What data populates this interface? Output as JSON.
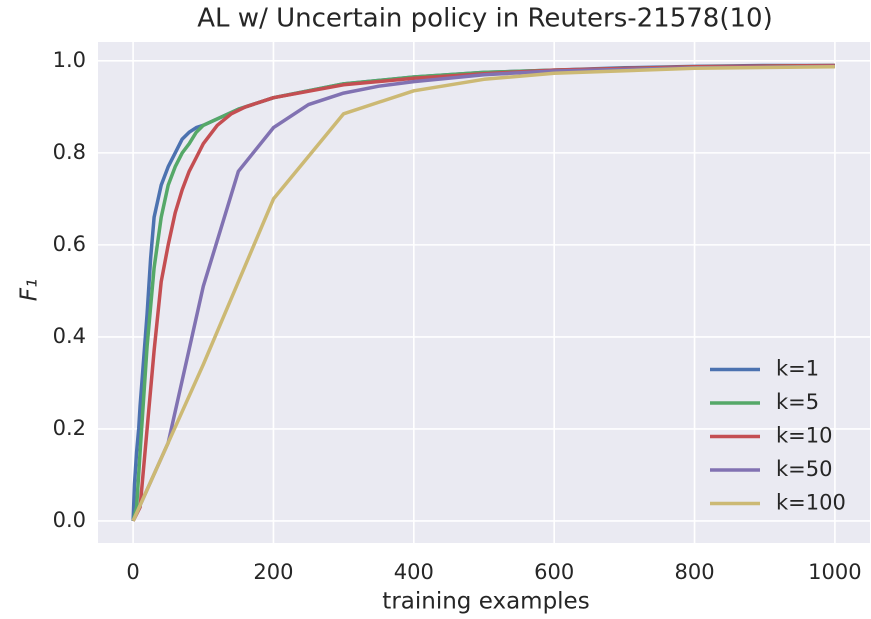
{
  "chart_data": {
    "type": "line",
    "title": "AL w/ Uncertain policy in Reuters-21578(10)",
    "xlabel": "training examples",
    "ylabel": "F₁",
    "xlim": [
      -50,
      1050
    ],
    "ylim": [
      -0.048,
      1.041
    ],
    "xticks": [
      0,
      200,
      400,
      600,
      800,
      1000
    ],
    "yticks": [
      {
        "value": 0.0,
        "label": "0.0"
      },
      0.2,
      0.4,
      0.6,
      0.8,
      {
        "value": 1.0,
        "label": "1.0"
      }
    ],
    "grid": true,
    "legend": "lower right",
    "series": [
      {
        "name": "k=1",
        "color": "#4c72b0",
        "x": [
          0,
          2,
          5,
          8,
          10,
          15,
          20,
          25,
          30,
          40,
          50,
          60,
          70,
          80,
          90,
          100,
          150,
          200,
          300,
          400,
          500,
          600,
          700,
          800,
          900,
          1000
        ],
        "values": [
          0,
          0.08,
          0.15,
          0.2,
          0.25,
          0.35,
          0.45,
          0.57,
          0.66,
          0.73,
          0.77,
          0.8,
          0.83,
          0.845,
          0.855,
          0.86,
          0.895,
          0.92,
          0.95,
          0.965,
          0.975,
          0.98,
          0.985,
          0.988,
          0.99,
          0.99
        ]
      },
      {
        "name": "k=5",
        "color": "#55a868",
        "x": [
          0,
          5,
          10,
          20,
          30,
          40,
          50,
          60,
          70,
          80,
          90,
          100,
          150,
          200,
          300,
          400,
          500,
          600,
          800,
          1000
        ],
        "values": [
          0,
          0.03,
          0.15,
          0.38,
          0.55,
          0.66,
          0.73,
          0.77,
          0.8,
          0.82,
          0.845,
          0.86,
          0.895,
          0.92,
          0.95,
          0.965,
          0.975,
          0.98,
          0.987,
          0.99
        ]
      },
      {
        "name": "k=10",
        "color": "#c44e52",
        "x": [
          0,
          10,
          20,
          30,
          40,
          50,
          60,
          70,
          80,
          90,
          100,
          120,
          140,
          160,
          200,
          300,
          400,
          500,
          600,
          800,
          1000
        ],
        "values": [
          0,
          0.03,
          0.2,
          0.37,
          0.52,
          0.6,
          0.67,
          0.72,
          0.76,
          0.79,
          0.82,
          0.86,
          0.885,
          0.9,
          0.92,
          0.948,
          0.962,
          0.972,
          0.98,
          0.987,
          0.99
        ]
      },
      {
        "name": "k=50",
        "color": "#8172b2",
        "x": [
          0,
          50,
          100,
          150,
          200,
          250,
          300,
          350,
          400,
          500,
          600,
          800,
          1000
        ],
        "values": [
          0,
          0.17,
          0.51,
          0.76,
          0.855,
          0.905,
          0.93,
          0.945,
          0.955,
          0.97,
          0.978,
          0.985,
          0.988
        ]
      },
      {
        "name": "k=100",
        "color": "#ccb974",
        "x": [
          0,
          100,
          200,
          300,
          400,
          500,
          600,
          800,
          1000
        ],
        "values": [
          0,
          0.34,
          0.7,
          0.885,
          0.935,
          0.96,
          0.973,
          0.984,
          0.987
        ]
      }
    ]
  }
}
